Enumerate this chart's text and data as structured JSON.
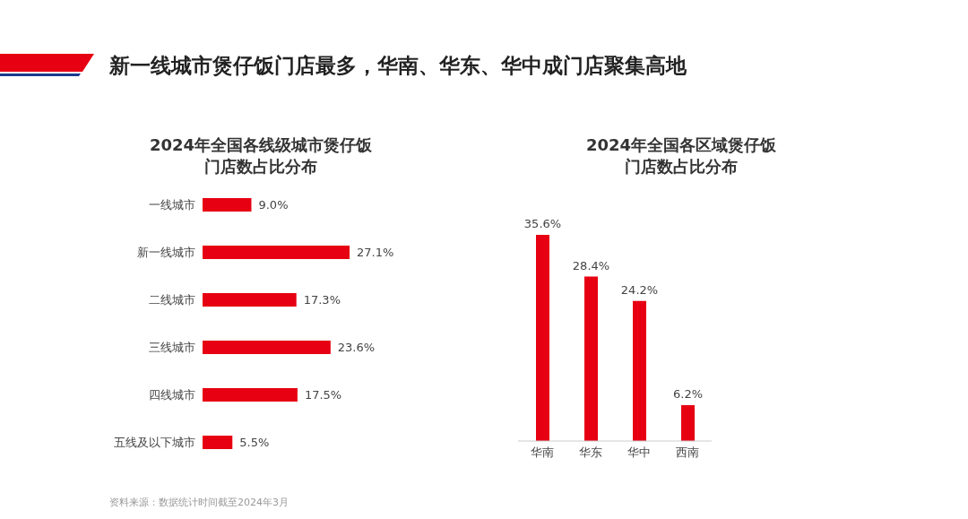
{
  "chart_data": [
    {
      "type": "bar",
      "orientation": "horizontal",
      "title": "新一线城市煲仔饭门店最多，华南、华东、华中成门店聚集高地",
      "subtitle": "2024年全国各线级城市煲仔饭门店数占比分布",
      "categories": [
        "一线城市",
        "新一线城市",
        "二线城市",
        "三线城市",
        "四线城市",
        "五线及以下城市"
      ],
      "values": [
        9.0,
        27.1,
        17.3,
        23.6,
        17.5,
        5.5
      ],
      "value_labels": [
        "9.0%",
        "27.1%",
        "17.3%",
        "23.6%",
        "17.5%",
        "5.5%"
      ],
      "color": "#e60012",
      "tick_labels": "y",
      "grid": false,
      "legend": false,
      "annotations": [
        "资料来源：数据统计时间截至2024年3月"
      ]
    },
    {
      "type": "bar",
      "title": "2024年全国各区域煲仔饭门店数占比分布",
      "categories": [
        "华南",
        "华东",
        "华中",
        "西南"
      ],
      "values": [
        35.6,
        28.4,
        24.2,
        6.2
      ],
      "value_labels": [
        "35.6%",
        "28.4%",
        "24.2%",
        "6.2%"
      ],
      "color": "#e60012",
      "tick_labels": "x",
      "grid": false,
      "legend": false
    }
  ]
}
